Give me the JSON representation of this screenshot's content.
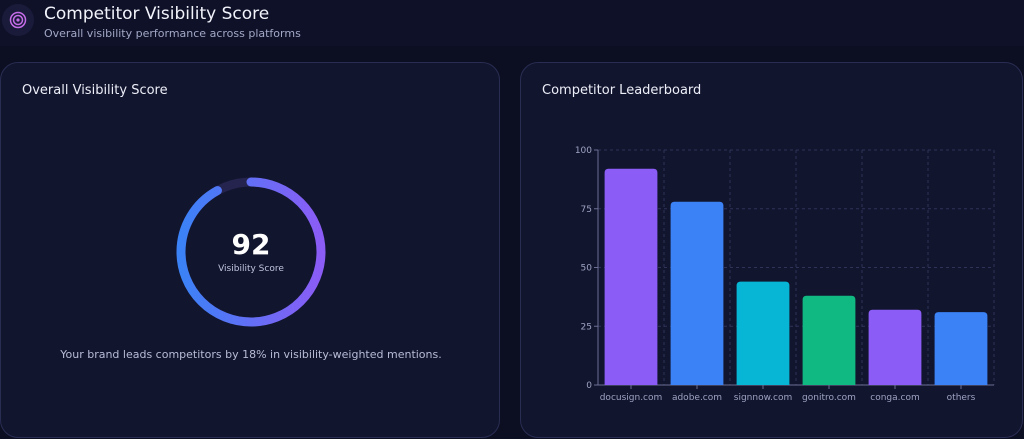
{
  "header": {
    "title": "Competitor Visibility Score",
    "subtitle": "Overall visibility performance across platforms",
    "icon": "target-icon"
  },
  "overall": {
    "title": "Overall Visibility Score",
    "score": 92,
    "score_text": "92",
    "score_label": "Visibility Score",
    "caption": "Your brand leads competitors by 18% in visibility-weighted mentions.",
    "gauge_fraction": 0.92,
    "colors": {
      "gradient_start": "#3b82f6",
      "gradient_end": "#8b5cf6",
      "track": "#25244f"
    }
  },
  "leaderboard": {
    "title": "Competitor Leaderboard"
  },
  "chart_data": {
    "type": "bar",
    "title": "Competitor Leaderboard",
    "categories": [
      "docusign.com",
      "adobe.com",
      "signnow.com",
      "gonitro.com",
      "conga.com",
      "others"
    ],
    "values": [
      92,
      78,
      44,
      38,
      32,
      31
    ],
    "colors": [
      "#8b5cf6",
      "#3b82f6",
      "#06b6d4",
      "#10b981",
      "#8b5cf6",
      "#3b82f6"
    ],
    "ylim": [
      0,
      100
    ],
    "yticks": [
      "0",
      "25",
      "50",
      "75",
      "100"
    ],
    "grid": true,
    "xlabel": "",
    "ylabel": ""
  }
}
